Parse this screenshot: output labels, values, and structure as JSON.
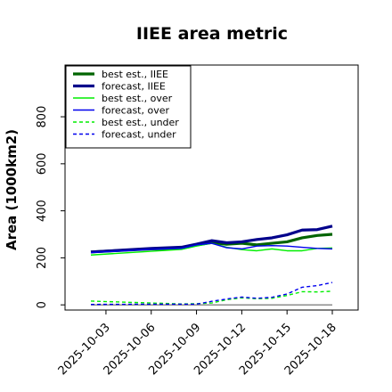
{
  "chart_data": {
    "type": "line",
    "title": "IIEE area metric",
    "xlabel": "",
    "ylabel": "Area (1000km2)",
    "ylim": [
      -22,
      1020
    ],
    "yticks": [
      0,
      200,
      400,
      600,
      800
    ],
    "xticks": [
      "2025-10-03",
      "2025-10-06",
      "2025-10-09",
      "2025-10-12",
      "2025-10-15",
      "2025-10-18"
    ],
    "highlight_xtick": "2025-10-09",
    "highlight_color": "#228B22",
    "x": [
      "2025-10-02",
      "2025-10-03",
      "2025-10-04",
      "2025-10-05",
      "2025-10-06",
      "2025-10-07",
      "2025-10-08",
      "2025-10-09",
      "2025-10-10",
      "2025-10-11",
      "2025-10-12",
      "2025-10-13",
      "2025-10-14",
      "2025-10-15",
      "2025-10-16",
      "2025-10-17",
      "2025-10-18"
    ],
    "zero_line": true,
    "grid": false,
    "legend_position": "top-left",
    "series": [
      {
        "name": "best est., IIEE",
        "color": "#006400",
        "dash": false,
        "width": 3.2,
        "values": [
          225,
          null,
          null,
          null,
          238,
          null,
          240,
          255,
          265,
          258,
          262,
          255,
          262,
          268,
          285,
          295,
          300
        ]
      },
      {
        "name": "forecast, IIEE",
        "color": "#00008B",
        "dash": false,
        "width": 3.2,
        "values": [
          225,
          null,
          null,
          null,
          240,
          null,
          245,
          258,
          273,
          264,
          268,
          278,
          285,
          298,
          318,
          320,
          335
        ]
      },
      {
        "name": "best est., over",
        "color": "#00ee00",
        "dash": false,
        "width": 1.4,
        "values": [
          212,
          null,
          null,
          null,
          228,
          null,
          236,
          250,
          262,
          245,
          235,
          230,
          238,
          230,
          230,
          240,
          242
        ]
      },
      {
        "name": "forecast, over",
        "color": "#0000ee",
        "dash": false,
        "width": 1.4,
        "values": [
          222,
          null,
          null,
          null,
          236,
          null,
          240,
          255,
          262,
          243,
          238,
          250,
          252,
          250,
          245,
          240,
          238
        ]
      },
      {
        "name": "best est., under",
        "color": "#00ee00",
        "dash": true,
        "width": 1.4,
        "values": [
          16,
          null,
          null,
          null,
          8,
          null,
          4,
          5,
          8,
          22,
          30,
          26,
          28,
          40,
          56,
          55,
          58
        ]
      },
      {
        "name": "forecast, under",
        "color": "#0000ee",
        "dash": true,
        "width": 1.4,
        "values": [
          2,
          null,
          null,
          null,
          3,
          null,
          3,
          3,
          15,
          25,
          33,
          28,
          32,
          46,
          75,
          82,
          95
        ]
      }
    ]
  }
}
